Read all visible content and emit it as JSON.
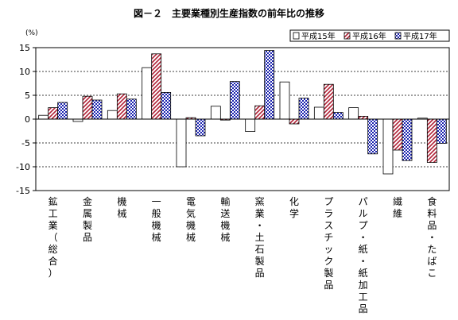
{
  "chart_data": {
    "type": "bar",
    "title": "図－２　主要業種別生産指数の前年比の推移",
    "unit_label": "(%)",
    "ylim": [
      -15,
      15
    ],
    "yticks": [
      15,
      10,
      5,
      0,
      -5,
      -10,
      -15
    ],
    "grid": "dashed horizontal at ±5, ±10",
    "legend_position": "top-right",
    "categories": [
      "鉱工業（総合）",
      "金属製品",
      "機械",
      "一般機械",
      "電気機械",
      "輸送機械",
      "窯業・土石製品",
      "化学",
      "プラスチック製品",
      "パルプ・紙・紙加工品",
      "繊維",
      "食料品・たばこ"
    ],
    "series": [
      {
        "name": "平成15年",
        "pattern": "white",
        "values": [
          0.8,
          -0.5,
          1.8,
          10.8,
          -10.0,
          2.7,
          -2.6,
          7.8,
          2.5,
          2.4,
          -11.5,
          0.2
        ]
      },
      {
        "name": "平成16年",
        "pattern": "red-hatch",
        "values": [
          2.4,
          4.8,
          5.3,
          13.7,
          0.3,
          -0.2,
          2.8,
          -1.0,
          7.3,
          0.6,
          -6.5,
          -9.1
        ]
      },
      {
        "name": "平成17年",
        "pattern": "blue-checker",
        "values": [
          3.5,
          4.0,
          4.2,
          5.6,
          -3.5,
          7.9,
          14.4,
          4.4,
          1.4,
          -7.3,
          -8.7,
          -5.1
        ]
      }
    ],
    "colors": {
      "hatch": "#b02035",
      "checker": "#1a22b0",
      "outline": "#000000"
    }
  }
}
